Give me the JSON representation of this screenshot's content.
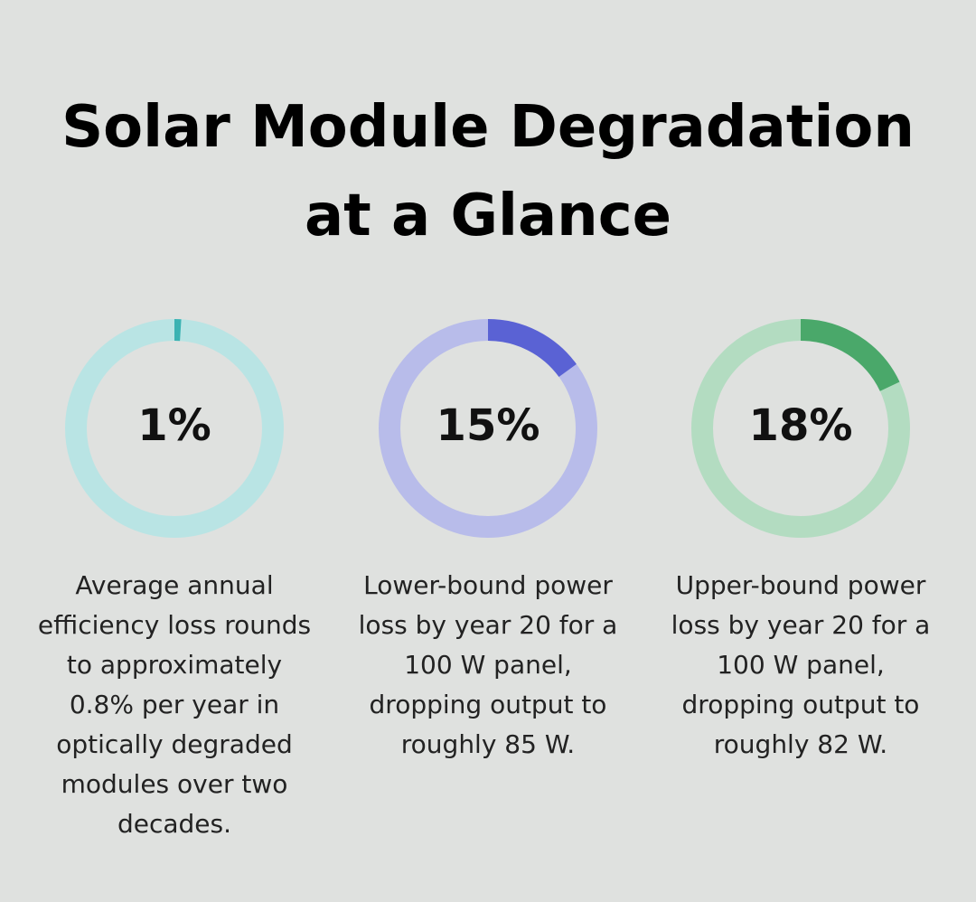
{
  "title": "Solar Module Degradation at a Glance",
  "chart_data": [
    {
      "type": "donut",
      "values": [
        1
      ],
      "value_labels": [
        "1%"
      ],
      "color": "#3bb3b3",
      "track_color": "#b9e4e4",
      "caption": "Average annual efficiency loss rounds to approximately 0.8% per year in optically degraded modules over two decades."
    },
    {
      "type": "donut",
      "values": [
        15
      ],
      "value_labels": [
        "15%"
      ],
      "color": "#5a62d4",
      "track_color": "#b8bcea",
      "caption": "Lower-bound power loss by year 20 for a 100 W panel, dropping output to roughly 85 W."
    },
    {
      "type": "donut",
      "values": [
        18
      ],
      "value_labels": [
        "18%"
      ],
      "color": "#4aa86a",
      "track_color": "#b3dcc1",
      "caption": "Upper-bound power loss by year 20 for a 100 W panel, dropping output to roughly 82 W."
    }
  ]
}
